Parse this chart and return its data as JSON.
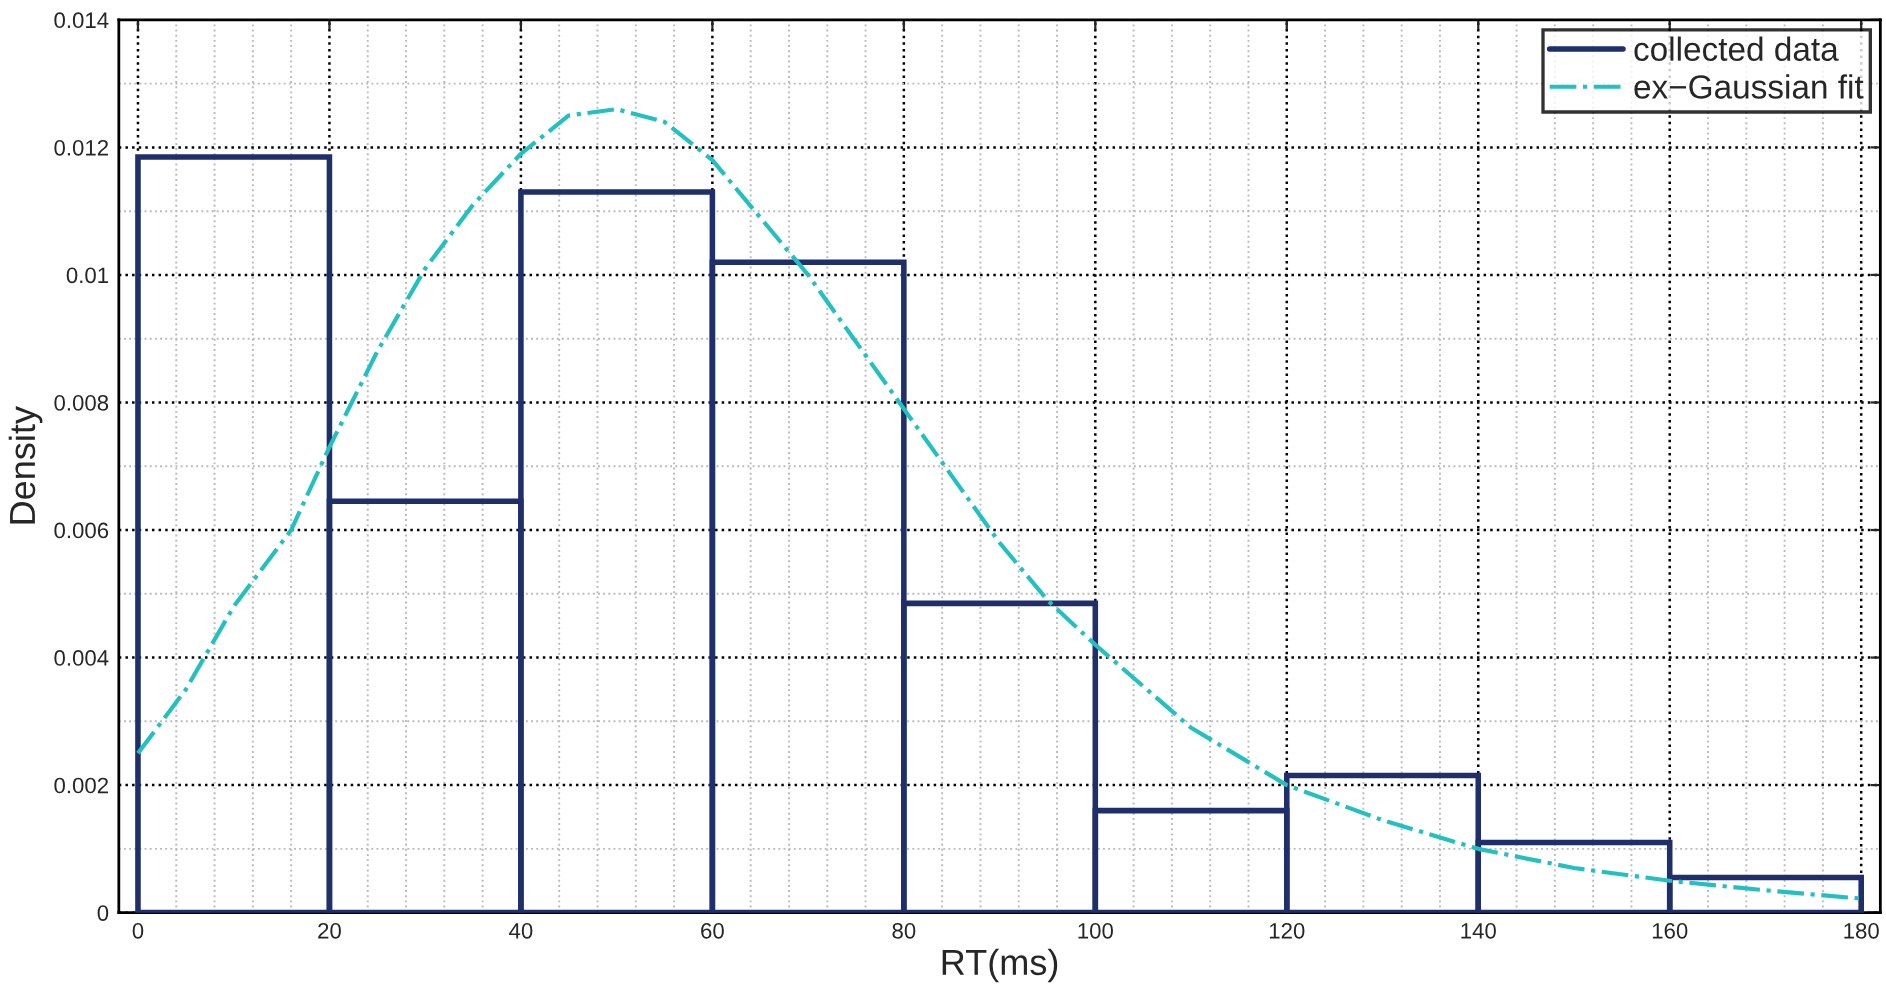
{
  "chart_data": {
    "type": "histogram",
    "xlabel": "RT(ms)",
    "ylabel": "Density",
    "bins": [
      0,
      20,
      40,
      60,
      80,
      100,
      120,
      140,
      160,
      180
    ],
    "series": [
      {
        "name": "collected data",
        "color": "#1f2f6b",
        "values": [
          0.01185,
          0.00645,
          0.0113,
          0.0102,
          0.00485,
          0.0016,
          0.00215,
          0.0011,
          0.00055
        ]
      },
      {
        "name": "ex−Gaussian fit",
        "type": "line",
        "color": "#22c0c0",
        "line_style": "dashdot",
        "x": [
          0,
          5,
          10,
          16,
          20,
          25,
          30,
          35,
          40,
          45,
          50,
          55,
          60,
          65,
          70,
          80,
          90,
          95,
          100,
          110,
          120,
          130,
          140,
          150,
          160,
          170,
          180
        ],
        "values": [
          0.0025,
          0.0035,
          0.0048,
          0.006,
          0.0073,
          0.0088,
          0.0101,
          0.0111,
          0.0119,
          0.0125,
          0.0126,
          0.0124,
          0.0118,
          0.0109,
          0.01,
          0.0079,
          0.0058,
          0.0049,
          0.0042,
          0.0029,
          0.002,
          0.00145,
          0.001,
          0.0007,
          0.0005,
          0.00035,
          0.00022
        ]
      }
    ],
    "xlim": [
      -2,
      182
    ],
    "ylim": [
      0,
      0.014
    ],
    "xticks": [
      0,
      20,
      40,
      60,
      80,
      100,
      120,
      140,
      160,
      180
    ],
    "yticks": [
      0,
      0.002,
      0.004,
      0.006,
      0.008,
      0.01,
      0.012,
      0.014
    ],
    "grid": true,
    "legend": "top right"
  }
}
